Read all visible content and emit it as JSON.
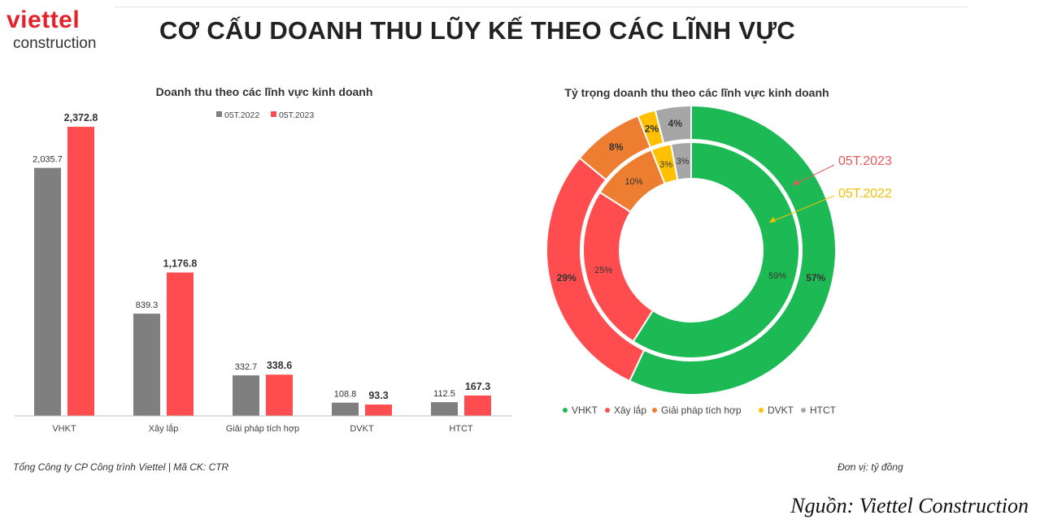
{
  "header": {
    "logo_top": "viettel",
    "logo_bottom": "construction",
    "title": "CƠ CẤU DOANH THU LŨY KẾ THEO CÁC LĨNH VỰC"
  },
  "footer": {
    "company": "Tổng Công ty CP Công trình Viettel   |   Mã CK: CTR",
    "unit": "Đơn vị: tỷ đồng",
    "source": "Nguồn: Viettel Construction"
  },
  "colors": {
    "gray": "#7f7f7f",
    "red": "#ff4d4f",
    "green": "#1db954",
    "orange": "#ed7d31",
    "yellow": "#ffc000",
    "lightgray": "#a6a6a6"
  },
  "chart_data": [
    {
      "type": "bar",
      "title": "Doanh thu theo các lĩnh vực kinh doanh",
      "categories": [
        "VHKT",
        "Xây lắp",
        "Giải pháp tích hợp",
        "DVKT",
        "HTCT"
      ],
      "series": [
        {
          "name": "05T.2022",
          "values": [
            2035.7,
            839.3,
            332.7,
            108.8,
            112.5
          ],
          "labels": [
            "2,035.7",
            "839.3",
            "332.7",
            "108.8",
            "112.5"
          ]
        },
        {
          "name": "05T.2023",
          "values": [
            2372.8,
            1176.8,
            338.6,
            93.3,
            167.3
          ],
          "labels": [
            "2,372.8",
            "1,176.8",
            "338.6",
            "93.3",
            "167.3"
          ]
        }
      ],
      "ylim": [
        0,
        2400
      ],
      "legend": "top"
    },
    {
      "type": "pie",
      "subtype": "double-donut",
      "title": "Tỷ trọng doanh thu theo các lĩnh vực kinh doanh",
      "categories": [
        "VHKT",
        "Xây lắp",
        "Giải pháp tích hợp",
        "DVKT",
        "HTCT"
      ],
      "series": [
        {
          "name": "05T.2023",
          "ring": "outer",
          "values": [
            57,
            29,
            8,
            2,
            4
          ],
          "labels": [
            "57%",
            "29%",
            "8%",
            "2%",
            "4%"
          ]
        },
        {
          "name": "05T.2022",
          "ring": "inner",
          "values": [
            59,
            25,
            10,
            3,
            3
          ],
          "labels": [
            "59%",
            "25%",
            "10%",
            "3%",
            "3%"
          ]
        }
      ],
      "legend": "bottom"
    }
  ]
}
